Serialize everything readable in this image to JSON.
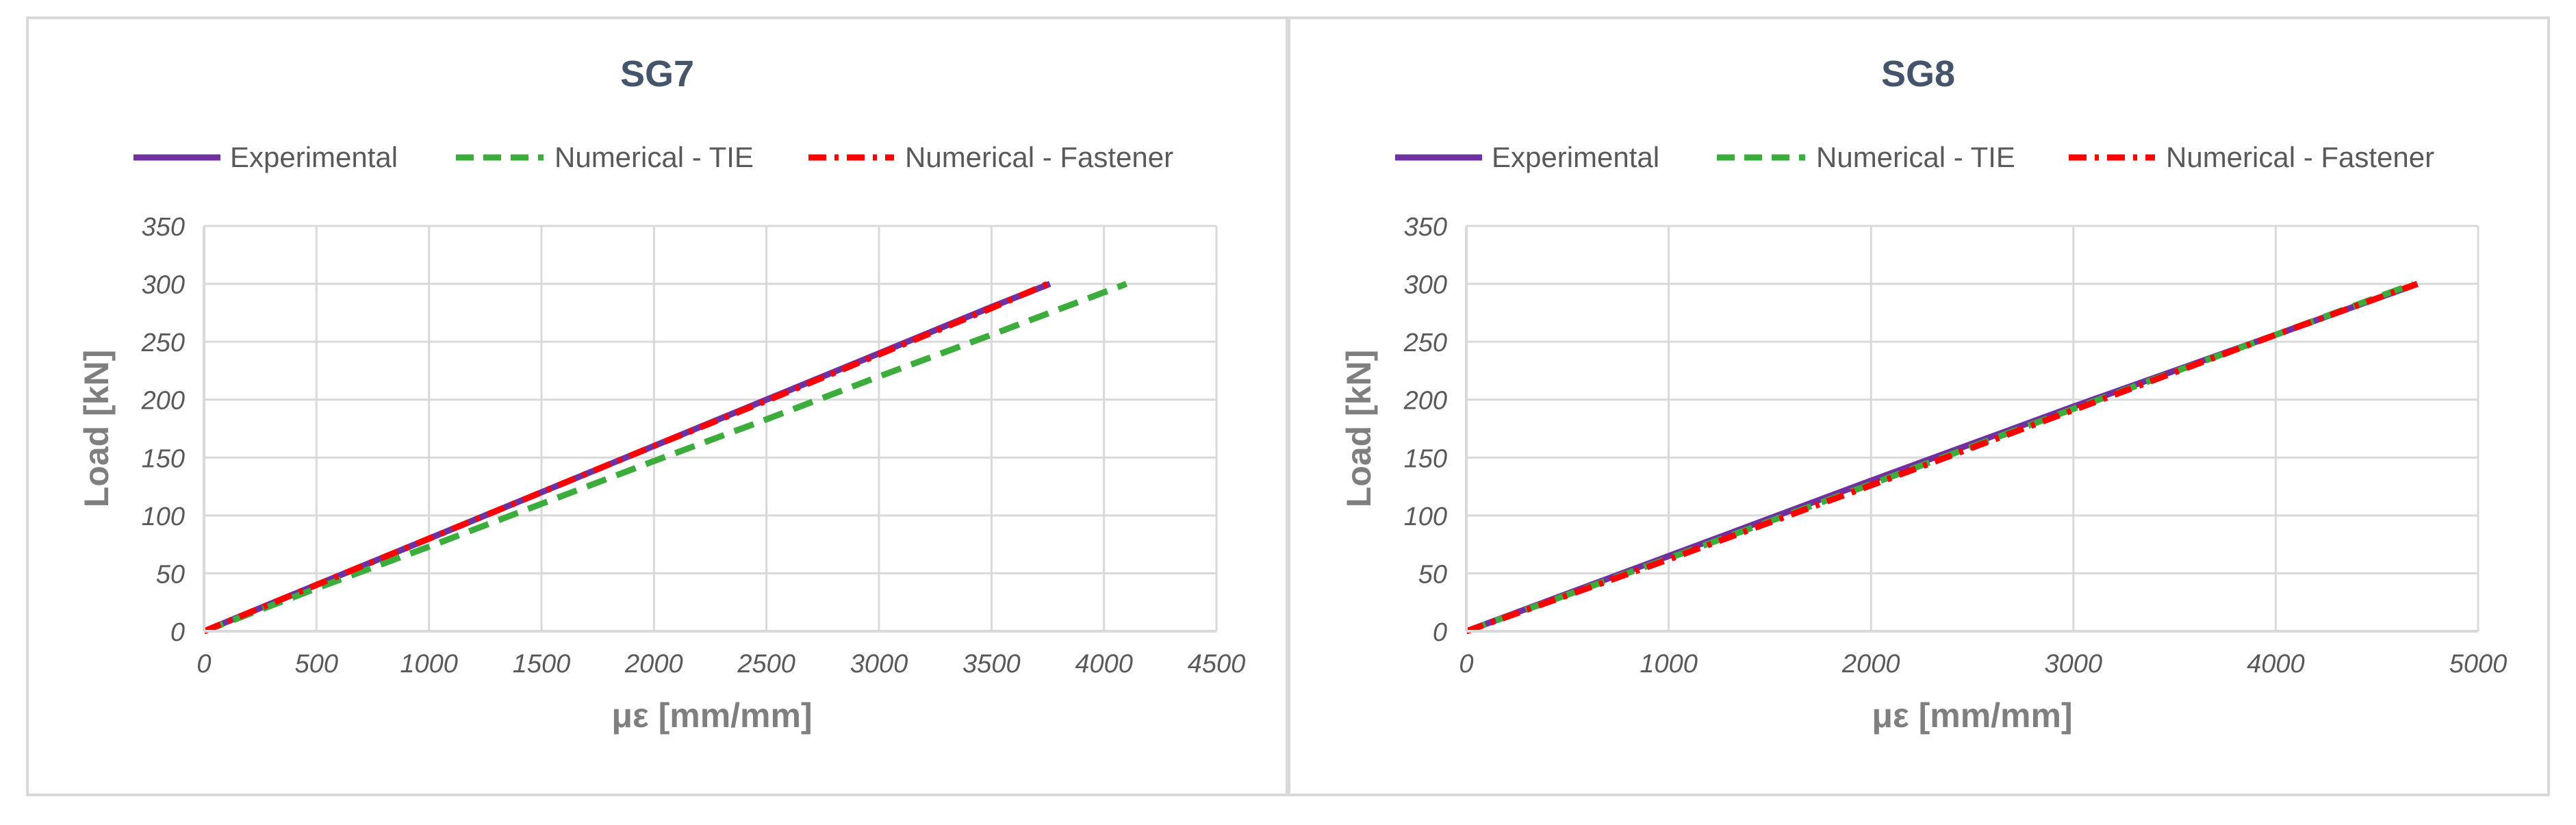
{
  "legend_labels": [
    "Experimental",
    "Numerical - TIE",
    "Numerical - Fastener"
  ],
  "colors": {
    "experimental": "#7030a0",
    "tie": "#3cad3c",
    "fastener": "#ff0000",
    "title": "#44546a",
    "axis_label": "#7f7f7f",
    "tick": "#595959",
    "grid": "#d9d9d9",
    "border": "#d9d9d9"
  },
  "chart_data": [
    {
      "type": "line",
      "title": "SG7",
      "xlabel": "με [mm/mm]",
      "ylabel": "Load [kN]",
      "xlim": [
        0,
        4500
      ],
      "ylim": [
        0,
        350
      ],
      "xticks": [
        0,
        500,
        1000,
        1500,
        2000,
        2500,
        3000,
        3500,
        4000,
        4500
      ],
      "yticks": [
        0,
        50,
        100,
        150,
        200,
        250,
        300,
        350
      ],
      "grid": true,
      "legend_position": "top",
      "series": [
        {
          "name": "Experimental",
          "style": "solid",
          "color_key": "experimental",
          "x": [
            0,
            500,
            1000,
            1500,
            2000,
            2500,
            3000,
            3500,
            3760
          ],
          "y": [
            0,
            40,
            80,
            120,
            160,
            200,
            240,
            280,
            300
          ]
        },
        {
          "name": "Numerical - TIE",
          "style": "dashed",
          "color_key": "tie",
          "x": [
            0,
            500,
            1000,
            1500,
            2000,
            2500,
            3000,
            3500,
            4100
          ],
          "y": [
            0,
            37,
            73,
            110,
            147,
            183,
            220,
            256,
            300
          ]
        },
        {
          "name": "Numerical - Fastener",
          "style": "dashdot",
          "color_key": "fastener",
          "x": [
            0,
            500,
            1000,
            1500,
            2000,
            2500,
            3000,
            3500,
            3750
          ],
          "y": [
            0,
            40,
            80,
            120,
            160,
            199,
            239,
            279,
            300
          ]
        }
      ]
    },
    {
      "type": "line",
      "title": "SG8",
      "xlabel": "με [mm/mm]",
      "ylabel": "Load [kN]",
      "xlim": [
        0,
        5000
      ],
      "ylim": [
        0,
        350
      ],
      "xticks": [
        0,
        1000,
        2000,
        3000,
        4000,
        5000
      ],
      "yticks": [
        0,
        50,
        100,
        150,
        200,
        250,
        300,
        350
      ],
      "grid": true,
      "legend_position": "top",
      "series": [
        {
          "name": "Experimental",
          "style": "solid",
          "color_key": "experimental",
          "x": [
            0,
            1000,
            2000,
            3000,
            4000,
            4700
          ],
          "y": [
            0,
            65,
            130,
            194,
            256,
            300
          ]
        },
        {
          "name": "Numerical - TIE",
          "style": "dashed",
          "color_key": "tie",
          "x": [
            0,
            1000,
            2000,
            3000,
            4000,
            4680
          ],
          "y": [
            0,
            63,
            127,
            192,
            256,
            300
          ]
        },
        {
          "name": "Numerical - Fastener",
          "style": "dashdot",
          "color_key": "fastener",
          "x": [
            0,
            1000,
            2000,
            3000,
            4000,
            4700
          ],
          "y": [
            0,
            62,
            126,
            191,
            256,
            300
          ]
        }
      ]
    }
  ]
}
